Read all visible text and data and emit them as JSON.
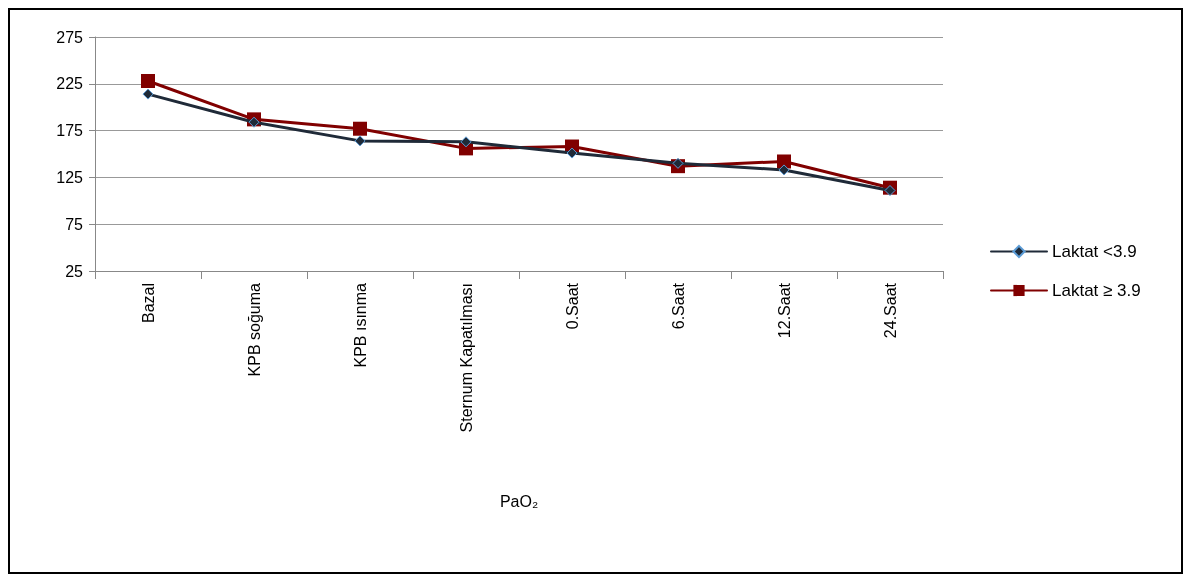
{
  "chart_data": {
    "type": "line",
    "xlabel": "PaO₂",
    "categories": [
      "Bazal",
      "KPB soğuma",
      "KPB ısınma",
      "Sternum Kapatılması",
      "0.Saat",
      "6.Saat",
      "12.Saat",
      "24.Saat"
    ],
    "series": [
      {
        "name": "Laktat <3.9",
        "color": "#1f2a38",
        "marker": "diamond",
        "values": [
          214,
          184,
          164,
          163,
          151,
          140,
          133,
          111
        ]
      },
      {
        "name": "Laktat ≥ 3.9",
        "color": "#800000",
        "marker": "square",
        "values": [
          228,
          187,
          177,
          156,
          158,
          137,
          142,
          114
        ]
      }
    ],
    "ylim": [
      25,
      275
    ],
    "yticks": [
      25,
      75,
      125,
      175,
      225,
      275
    ],
    "grid": "y",
    "legend": "right"
  }
}
